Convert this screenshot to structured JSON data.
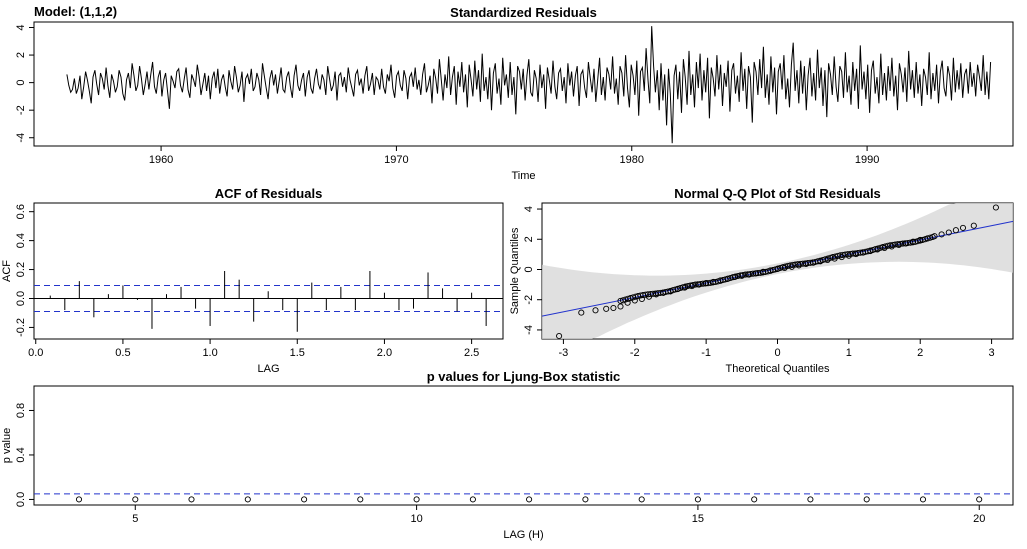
{
  "model_label": "Model: (1,1,2)",
  "chart_data": [
    {
      "type": "line",
      "title": "Standardized Residuals",
      "xlabel": "Time",
      "ylabel": "",
      "xlim": [
        1954.6,
        1996.2
      ],
      "ylim": [
        -4.6,
        4.4
      ],
      "xticks": [
        1960,
        1970,
        1980,
        1990
      ],
      "yticks": [
        -4,
        -2,
        0,
        2,
        4
      ],
      "x_start": 1956.0,
      "x_end": 1995.25,
      "n": 472,
      "series": [
        {
          "values_description_free": true,
          "values": [
            0.6,
            -0.2,
            -0.7,
            -0.5,
            0.3,
            -0.8,
            -0.4,
            0.5,
            -1.2,
            -0.3,
            0.8,
            0.2,
            -0.6,
            -1.5,
            0.4,
            0.9,
            -0.1,
            -0.9,
            0.7,
            0.3,
            -0.5,
            1.1,
            -0.2,
            -1.1,
            0.6,
            0.1,
            -0.7,
            -0.3,
            0.9,
            0.4,
            -0.8,
            -1.3,
            0.2,
            0.7,
            -0.4,
            1.4,
            0.5,
            -0.6,
            -0.2,
            1.2,
            0.3,
            -0.9,
            -0.1,
            0.8,
            -0.5,
            0.6,
            1.5,
            -0.3,
            -0.8,
            0.4,
            0.9,
            -1.0,
            0.2,
            0.7,
            -0.6,
            -1.9,
            0.5,
            0.1,
            -0.4,
            0.8,
            1.0,
            -0.2,
            -0.7,
            0.3,
            1.1,
            -0.5,
            -1.1,
            0.6,
            0.2,
            -0.3,
            1.3,
            0.4,
            -0.9,
            -0.1,
            0.7,
            -0.6,
            0.5,
            -1.2,
            0.3,
            0.8,
            -0.4,
            1.0,
            -0.8,
            0.2,
            0.6,
            -0.3,
            -1.0,
            0.9,
            0.1,
            -0.5,
            1.2,
            0.4,
            -0.7,
            -0.2,
            0.8,
            -1.4,
            0.3,
            0.6,
            -0.1,
            1.0,
            -0.6,
            -0.3,
            0.7,
            0.2,
            -0.9,
            1.4,
            0.5,
            -0.4,
            -1.2,
            0.3,
            0.9,
            -0.2,
            0.6,
            -0.8,
            0.1,
            1.1,
            -0.5,
            -0.7,
            0.4,
            0.8,
            -0.3,
            -1.1,
            0.5,
            1.3,
            -0.2,
            -0.6,
            0.2,
            0.7,
            -1.0,
            0.4,
            0.9,
            -0.4,
            -0.8,
            0.3,
            1.0,
            -0.1,
            -0.5,
            0.6,
            0.2,
            -0.9,
            1.2,
            0.3,
            -0.6,
            -0.2,
            0.8,
            -1.3,
            0.5,
            0.7,
            -0.3,
            0.4,
            -0.7,
            1.1,
            0.2,
            -0.4,
            -1.0,
            0.6,
            0.9,
            -0.2,
            0.3,
            -0.8,
            0.5,
            1.2,
            -0.6,
            -0.1,
            0.7,
            -0.9,
            0.4,
            0.2,
            -0.5,
            1.0,
            -0.3,
            -0.8,
            0.6,
            0.1,
            1.3,
            -0.4,
            -1.1,
            0.5,
            0.8,
            -0.2,
            -0.6,
            0.9,
            0.3,
            -1.2,
            0.4,
            0.7,
            -0.3,
            1.1,
            -0.5,
            0.2,
            -0.9,
            0.6,
            1.4,
            -0.7,
            -0.2,
            0.5,
            -1.5,
            1.0,
            0.3,
            -0.8,
            1.7,
            0.2,
            -1.3,
            0.6,
            -0.4,
            1.9,
            -0.9,
            0.4,
            1.2,
            -1.6,
            0.8,
            -0.3,
            1.5,
            -0.7,
            0.6,
            -1.8,
            1.3,
            0.2,
            -1.0,
            1.6,
            -0.5,
            0.9,
            -1.4,
            2.1,
            -0.6,
            0.4,
            -1.2,
            1.1,
            -2.0,
            0.7,
            1.4,
            -0.8,
            0.3,
            -1.6,
            1.8,
            -0.2,
            0.6,
            -1.1,
            1.5,
            -0.9,
            0.4,
            -2.3,
            1.2,
            0.8,
            -0.5,
            1.0,
            -1.3,
            0.5,
            1.7,
            -0.7,
            -1.0,
            0.9,
            0.3,
            -1.4,
            1.3,
            -0.4,
            0.6,
            -1.9,
            1.1,
            0.2,
            -0.8,
            1.6,
            -0.3,
            -1.2,
            0.7,
            1.0,
            -0.6,
            0.4,
            -1.5,
            1.4,
            -0.2,
            0.8,
            -1.0,
            0.5,
            1.2,
            -1.7,
            0.6,
            0.9,
            -0.4,
            -1.1,
            1.5,
            0.3,
            -0.7,
            1.0,
            -1.4,
            0.2,
            1.8,
            -0.9,
            0.4,
            -1.3,
            1.1,
            0.6,
            -0.5,
            1.9,
            -0.8,
            0.3,
            -1.6,
            1.2,
            0.7,
            -1.0,
            2.0,
            -0.4,
            -1.8,
            1.3,
            0.5,
            -0.9,
            1.6,
            -2.4,
            0.8,
            1.1,
            -0.6,
            2.5,
            0.2,
            -1.5,
            4.1,
            1.2,
            -0.7,
            0.9,
            -2.0,
            1.4,
            -1.3,
            0.6,
            -3.1,
            1.0,
            -0.8,
            -4.4,
            0.5,
            1.3,
            -1.2,
            0.8,
            -2.2,
            1.7,
            0.4,
            -1.6,
            2.3,
            -0.9,
            0.6,
            -1.8,
            1.5,
            -0.4,
            2.1,
            -1.3,
            0.9,
            -0.7,
            1.8,
            -2.6,
            1.1,
            0.3,
            -1.0,
            2.0,
            -0.5,
            1.3,
            -1.7,
            0.7,
            -0.3,
            1.6,
            -2.1,
            0.9,
            1.4,
            -0.8,
            0.5,
            -1.4,
            2.2,
            -0.6,
            1.0,
            -1.9,
            1.2,
            0.4,
            -2.9,
            1.5,
            0.8,
            -0.9,
            1.7,
            -0.4,
            2.6,
            -1.1,
            0.6,
            -1.6,
            1.9,
            -0.7,
            1.1,
            -2.3,
            0.8,
            1.4,
            -0.5,
            2.0,
            -1.2,
            0.3,
            -1.8,
            1.3,
            2.9,
            -0.6,
            0.9,
            -1.5,
            1.6,
            -0.8,
            1.2,
            -2.0,
            0.5,
            1.8,
            -1.0,
            0.7,
            -1.3,
            2.4,
            -0.4,
            1.1,
            -1.7,
            0.9,
            -2.5,
            1.4,
            0.6,
            -0.9,
            1.9,
            -0.3,
            -1.4,
            1.2,
            0.8,
            -1.1,
            2.2,
            -0.7,
            0.5,
            -1.6,
            1.5,
            -0.6,
            1.0,
            -1.9,
            2.7,
            -0.5,
            0.8,
            -1.2,
            1.3,
            -2.2,
            0.9,
            1.6,
            -0.8,
            0.4,
            -1.5,
            2.1,
            -0.9,
            0.7,
            -1.3,
            1.2,
            -0.6,
            1.8,
            -1.0,
            0.5,
            -2.0,
            1.4,
            0.6,
            -0.7,
            1.1,
            -1.4,
            2.3,
            -0.5,
            0.9,
            -1.1,
            1.5,
            -0.8,
            0.6,
            -1.7,
            1.0,
            0.4,
            -0.9,
            2.2,
            -1.2,
            0.7,
            -0.6,
            1.3,
            -1.5,
            0.8,
            1.6,
            -0.4,
            -1.0,
            1.2,
            0.5,
            -1.3,
            1.8,
            -0.7,
            0.9,
            -0.5,
            1.4,
            -1.1,
            0.6,
            1.0,
            -0.8,
            1.5,
            -0.3,
            0.7,
            -1.0,
            1.3,
            0.4,
            -0.6,
            2.0,
            -0.9,
            0.8,
            -1.2,
            1.5
          ]
        }
      ]
    },
    {
      "type": "bar",
      "title": "ACF of Residuals",
      "xlabel": "LAG",
      "ylabel": "ACF",
      "xlim": [
        -0.01,
        2.68
      ],
      "ylim": [
        -0.28,
        0.66
      ],
      "xticks": [
        0.0,
        0.5,
        1.0,
        1.5,
        2.0,
        2.5
      ],
      "yticks": [
        -0.2,
        0.0,
        0.2,
        0.4,
        0.6
      ],
      "conf_bound": 0.09,
      "lags": [
        0.0833,
        0.1667,
        0.25,
        0.3333,
        0.4167,
        0.5,
        0.5833,
        0.6667,
        0.75,
        0.8333,
        0.9167,
        1.0,
        1.0833,
        1.1667,
        1.25,
        1.3333,
        1.4167,
        1.5,
        1.5833,
        1.6667,
        1.75,
        1.8333,
        1.9167,
        2.0,
        2.0833,
        2.1667,
        2.25,
        2.3333,
        2.4167,
        2.5,
        2.5833
      ],
      "values": [
        0.02,
        -0.08,
        0.12,
        -0.13,
        0.03,
        0.09,
        -0.01,
        -0.21,
        0.03,
        0.08,
        -0.07,
        -0.19,
        0.19,
        0.13,
        -0.16,
        0.05,
        -0.08,
        -0.23,
        0.11,
        -0.08,
        0.08,
        -0.08,
        0.19,
        0.04,
        -0.08,
        -0.07,
        0.18,
        0.07,
        -0.09,
        0.04,
        -0.19
      ]
    },
    {
      "type": "scatter",
      "title": "Normal Q-Q Plot of Std Residuals",
      "xlabel": "Theoretical Quantiles",
      "ylabel": "Sample Quantiles",
      "xlim": [
        -3.3,
        3.3
      ],
      "ylim": [
        -4.6,
        4.4
      ],
      "xticks": [
        -3,
        -2,
        -1,
        0,
        1,
        2,
        3
      ],
      "yticks": [
        -4,
        -2,
        0,
        2,
        4
      ],
      "ref_line": {
        "intercept": 0.05,
        "slope": 0.95
      },
      "points": [
        [
          -3.06,
          -4.4
        ],
        [
          -2.75,
          -2.85
        ],
        [
          -2.55,
          -2.7
        ],
        [
          -2.4,
          -2.6
        ],
        [
          -2.3,
          -2.55
        ],
        [
          -2.2,
          -2.45
        ],
        [
          -2.1,
          -2.2
        ],
        [
          -2.0,
          -2.05
        ],
        [
          -1.9,
          -1.95
        ],
        [
          -1.8,
          -1.8
        ],
        [
          -1.7,
          -1.65
        ],
        [
          -1.6,
          -1.55
        ],
        [
          -1.5,
          -1.45
        ],
        [
          -1.4,
          -1.3
        ],
        [
          -1.3,
          -1.2
        ],
        [
          -1.2,
          -1.1
        ],
        [
          -1.1,
          -1.0
        ],
        [
          -1.0,
          -0.9
        ],
        [
          -0.9,
          -0.82
        ],
        [
          -0.8,
          -0.72
        ],
        [
          -0.7,
          -0.62
        ],
        [
          -0.6,
          -0.5
        ],
        [
          -0.5,
          -0.42
        ],
        [
          -0.4,
          -0.34
        ],
        [
          -0.3,
          -0.25
        ],
        [
          -0.2,
          -0.15
        ],
        [
          -0.1,
          -0.06
        ],
        [
          0.0,
          0.03
        ],
        [
          0.1,
          0.1
        ],
        [
          0.2,
          0.18
        ],
        [
          0.3,
          0.27
        ],
        [
          0.4,
          0.36
        ],
        [
          0.5,
          0.45
        ],
        [
          0.6,
          0.54
        ],
        [
          0.7,
          0.63
        ],
        [
          0.8,
          0.72
        ],
        [
          0.9,
          0.82
        ],
        [
          1.0,
          0.91
        ],
        [
          1.1,
          1.02
        ],
        [
          1.2,
          1.12
        ],
        [
          1.3,
          1.22
        ],
        [
          1.4,
          1.32
        ],
        [
          1.5,
          1.42
        ],
        [
          1.6,
          1.52
        ],
        [
          1.7,
          1.62
        ],
        [
          1.8,
          1.72
        ],
        [
          1.9,
          1.84
        ],
        [
          2.0,
          1.96
        ],
        [
          2.1,
          2.06
        ],
        [
          2.2,
          2.2
        ],
        [
          2.3,
          2.32
        ],
        [
          2.4,
          2.45
        ],
        [
          2.5,
          2.6
        ],
        [
          2.6,
          2.75
        ],
        [
          2.75,
          2.9
        ],
        [
          3.06,
          4.1
        ]
      ]
    },
    {
      "type": "scatter",
      "title": "p values for Ljung-Box statistic",
      "xlabel": "LAG (H)",
      "ylabel": "p value",
      "xlim": [
        3.2,
        20.6
      ],
      "ylim": [
        -0.05,
        1.02
      ],
      "xticks": [
        5,
        10,
        15,
        20
      ],
      "yticks": [
        0.0,
        0.4,
        0.8
      ],
      "threshold": 0.05,
      "lags": [
        4,
        5,
        6,
        7,
        8,
        9,
        10,
        11,
        12,
        13,
        14,
        15,
        16,
        17,
        18,
        19,
        20
      ],
      "values": [
        0.0,
        0.0,
        0.0,
        0.0,
        0.0,
        0.0,
        0.0,
        0.0,
        0.0,
        0.0,
        0.0,
        0.0,
        0.0,
        0.0,
        0.0,
        0.0,
        0.0
      ]
    }
  ]
}
